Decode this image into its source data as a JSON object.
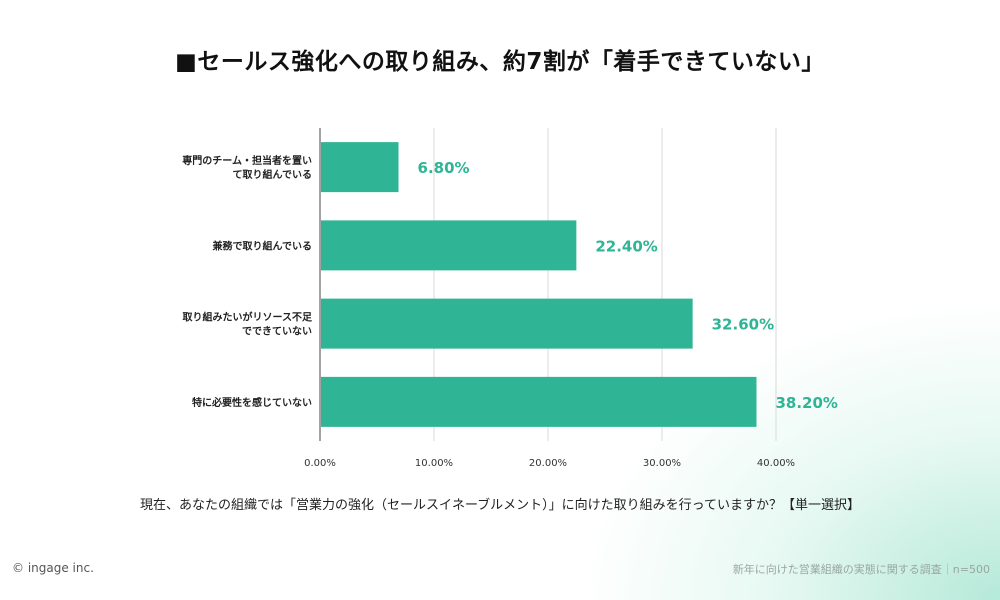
{
  "title": "■セールス強化への取り組み、約7割が「着手できていない」",
  "question": "現在、あなたの組織では「営業力の強化（セールスイネーブルメント）」に向けた取り組みを行っていますか？【単一選択】",
  "copyright": "© ingage inc.",
  "footnote": "新年に向けた営業組織の実態に関する調査｜n=500",
  "colors": {
    "bar": "#2fb495",
    "label": "#2fb495",
    "grid": "#d9d9d9",
    "axis": "#444444"
  },
  "chart_data": {
    "type": "bar",
    "orientation": "horizontal",
    "categories": [
      [
        "専門のチーム・担当者を置い",
        "て取り組んでいる"
      ],
      [
        "兼務で取り組んでいる"
      ],
      [
        "取り組みたいがリソース不足",
        "でできていない"
      ],
      [
        "特に必要性を感じていない"
      ]
    ],
    "values": [
      6.8,
      22.4,
      32.6,
      38.2
    ],
    "data_labels": [
      "6.80%",
      "22.40%",
      "32.60%",
      "38.20%"
    ],
    "xticks": [
      "0.00%",
      "10.00%",
      "20.00%",
      "30.00%",
      "40.00%"
    ],
    "xlim": [
      0,
      40
    ],
    "grid": true,
    "legend": "none"
  }
}
